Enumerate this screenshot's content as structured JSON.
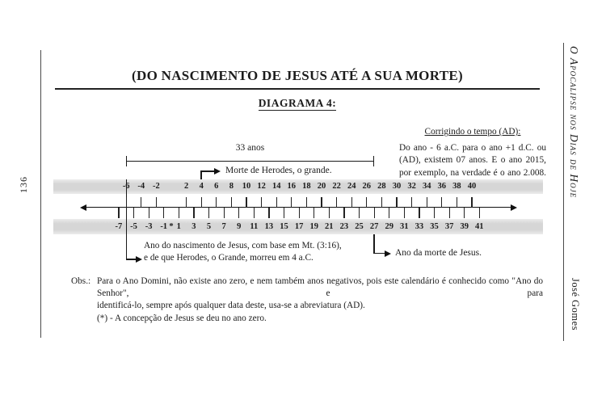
{
  "page": {
    "page_number": "136",
    "side_title": "O Apocalipse nos Dias de Hoje",
    "side_author": "José Gomes",
    "title": "(DO NASCIMENTO DE JESUS ATÉ A SUA MORTE)",
    "subtitle": "DIAGRAMA 4:"
  },
  "correction": {
    "heading": "Corrigindo o tempo (AD):",
    "line1": "Do ano - 6 a.C. para o ano +1 d.C. ou",
    "line2": "(AD), existem 07 anos. E o ano 2015,",
    "line3": "por exemplo, na verdade é o ano 2.008."
  },
  "timeline": {
    "span_label": "33 anos",
    "herod_annotation": "Morte de Herodes, o grande.",
    "birth_annotation_line1": "Ano do nascimento de Jesus, com base em Mt. (3:16),",
    "birth_annotation_line2": "e de que Herodes, o Grande, morreu em 4 a.C.",
    "death_annotation": "Ano da morte de Jesus.",
    "top_scale": [
      "-6",
      "-4",
      "-2",
      "2",
      "4",
      "6",
      "8",
      "10",
      "12",
      "14",
      "16",
      "18",
      "20",
      "22",
      "24",
      "26",
      "28",
      "30",
      "32",
      "34",
      "36",
      "38",
      "40"
    ],
    "bottom_scale": [
      "-7",
      "-5",
      "-3",
      "-1",
      "*",
      "1",
      "3",
      "5",
      "7",
      "9",
      "11",
      "13",
      "15",
      "17",
      "19",
      "21",
      "23",
      "25",
      "27",
      "29",
      "31",
      "33",
      "35",
      "37",
      "39",
      "41"
    ]
  },
  "obs": {
    "label": "Obs.:",
    "line1": "Para o Ano Domini, não existe ano zero, e nem também anos negativos, pois este calendário é conhecido como \"Ano do Senhor\", e para",
    "line2": "identificá-lo, sempre após qualquer data deste, usa-se a abreviatura (AD).",
    "line3": "(*) - A concepção de Jesus se deu no ano zero."
  }
}
